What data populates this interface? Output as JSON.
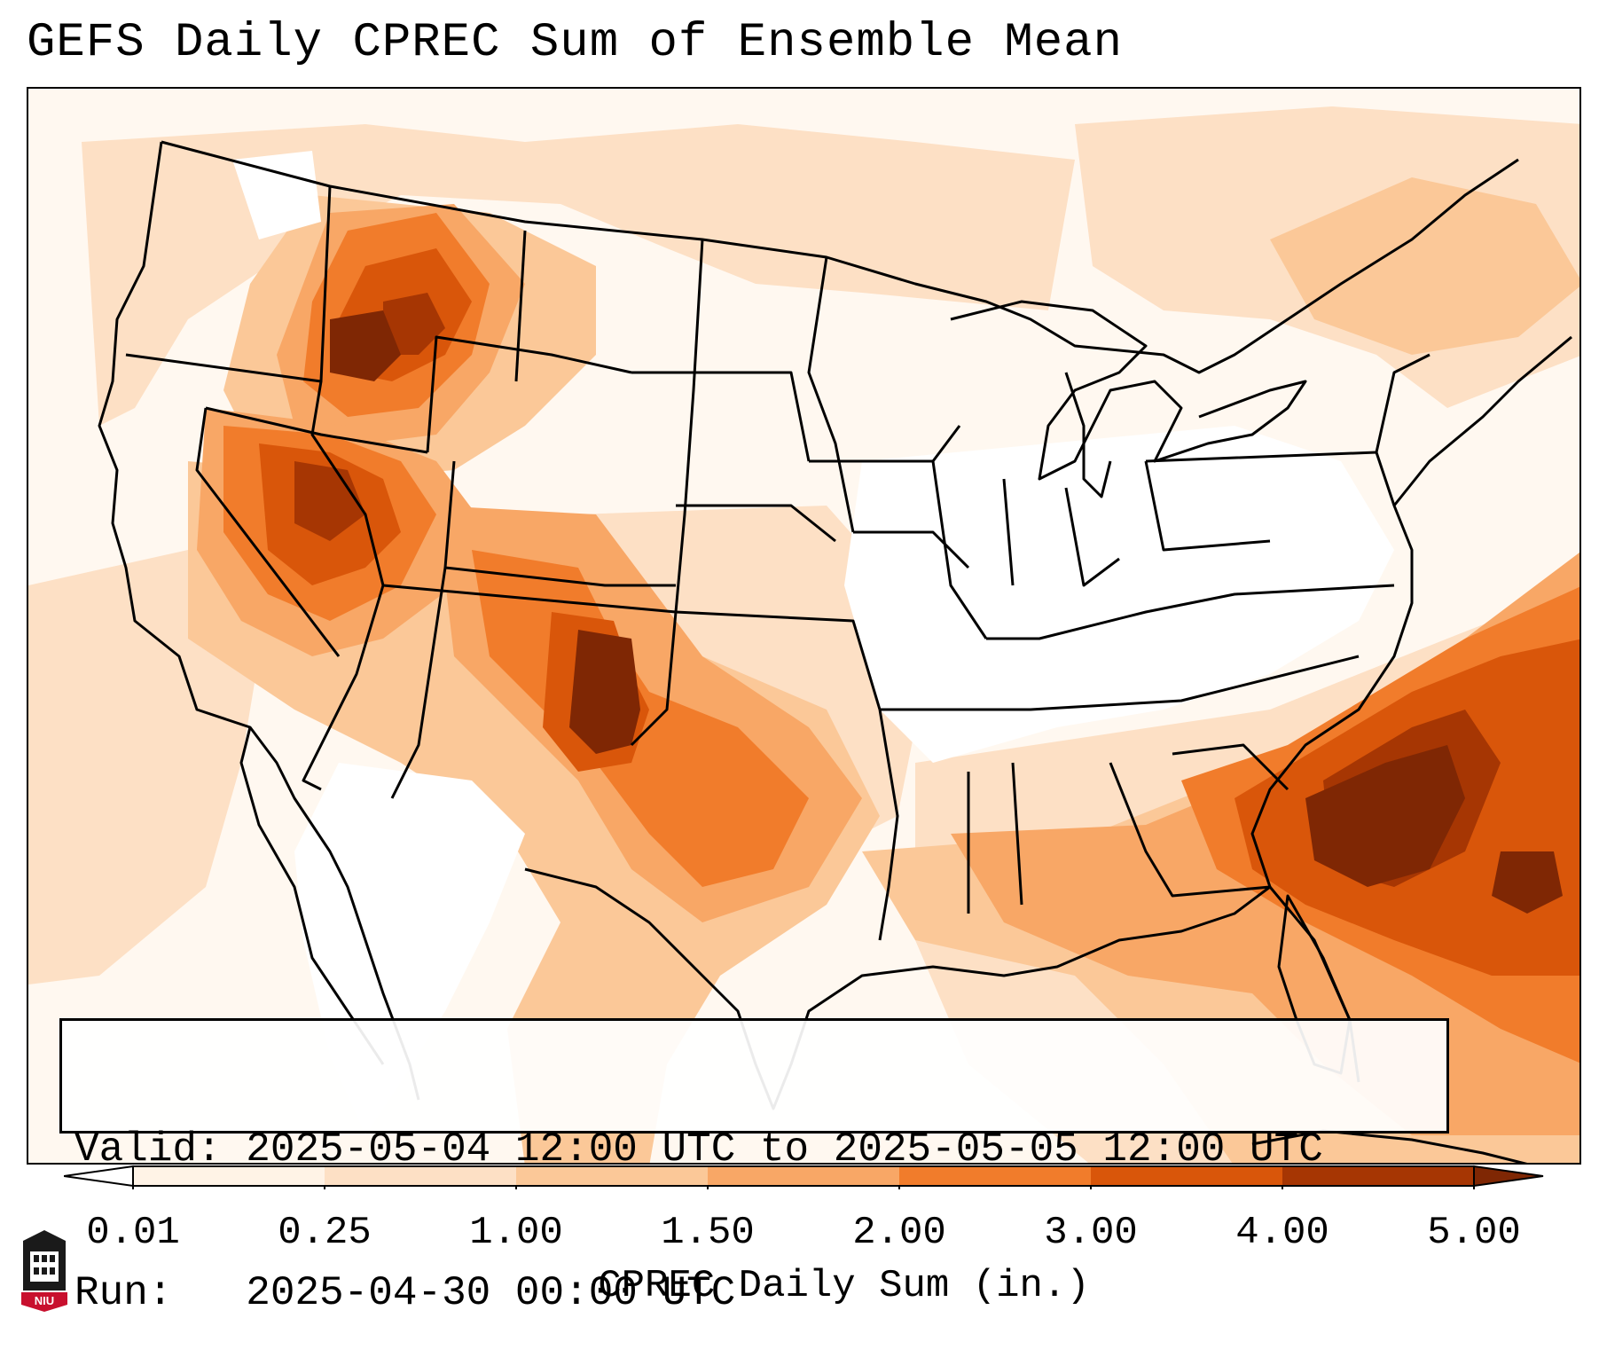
{
  "title": "GEFS Daily CPREC Sum of Ensemble Mean",
  "info": {
    "valid": "Valid: 2025-05-04 12:00 UTC to 2025-05-05 12:00 UTC",
    "run": "Run:   2025-04-30 00:00 UTC"
  },
  "colorbar": {
    "label": "CPREC Daily Sum (in.)",
    "ticks": [
      "0.01",
      "0.25",
      "1.00",
      "1.50",
      "2.00",
      "3.00",
      "4.00",
      "5.00"
    ],
    "colors": [
      "#fff3e6",
      "#fde0c5",
      "#fbc898",
      "#f8a766",
      "#f17c2b",
      "#d9560a",
      "#a63603",
      "#7f2704"
    ],
    "under_color": "#ffffff",
    "over_color": "#7f2704"
  },
  "map": {
    "background_color": "#fff8f0",
    "line_color": "#000000",
    "precip_regions": [
      {
        "name": "pacific-northwest-light",
        "level": 1
      },
      {
        "name": "idaho-wyoming-heavy",
        "level": 5
      },
      {
        "name": "nevada-utah-heavy",
        "level": 5
      },
      {
        "name": "colorado-moderate",
        "level": 4
      },
      {
        "name": "new-mexico-core",
        "level": 7
      },
      {
        "name": "texas-oklahoma-moderate",
        "level": 4
      },
      {
        "name": "gulf-coast",
        "level": 4
      },
      {
        "name": "atlantic-offshore-core",
        "level": 7
      },
      {
        "name": "canada-northeast",
        "level": 3
      }
    ]
  },
  "logo": {
    "text": "NIU"
  }
}
